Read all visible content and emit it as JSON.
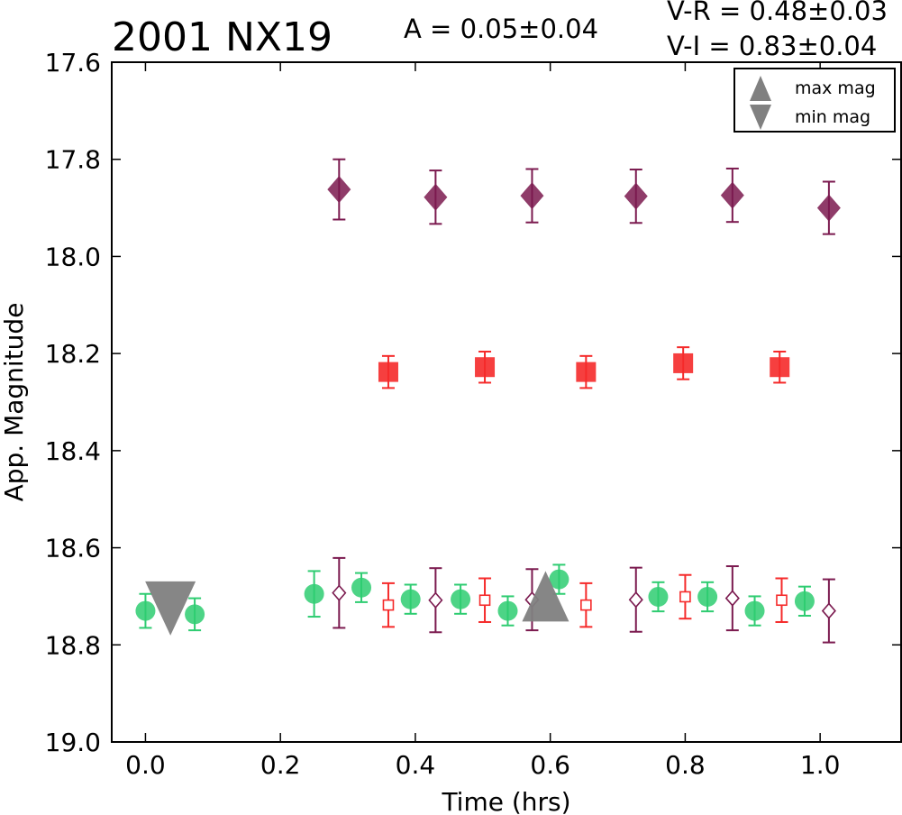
{
  "header": {
    "object_name": "2001 NX19",
    "amplitude": "A  = 0.05±0.04",
    "color_vr": "V-R = 0.48±0.03",
    "color_vi": "V-I  = 0.83±0.04"
  },
  "chart_data": {
    "type": "scatter",
    "title": "2001 NX19",
    "xlabel": "Time (hrs)",
    "ylabel": "App. Magnitude",
    "xlim": [
      -0.05,
      1.12
    ],
    "ylim": [
      19.0,
      17.6
    ],
    "y_inverted": true,
    "xticks": [
      0.0,
      0.2,
      0.4,
      0.6,
      0.8,
      1.0
    ],
    "xtick_labels": [
      "0.0",
      "0.2",
      "0.4",
      "0.6",
      "0.8",
      "1.0"
    ],
    "yticks": [
      17.6,
      17.8,
      18.0,
      18.2,
      18.4,
      18.6,
      18.8,
      19.0
    ],
    "ytick_labels": [
      "17.6",
      "17.8",
      "18.0",
      "18.2",
      "18.4",
      "18.6",
      "18.8",
      "19.0"
    ],
    "grid": false,
    "legend_position": "top-right",
    "legend": [
      {
        "label": "max mag",
        "marker": "triangle-up",
        "color": "#808080"
      },
      {
        "label": "min mag",
        "marker": "triangle-down",
        "color": "#808080"
      }
    ],
    "series": [
      {
        "marker": "diamond-filled",
        "color": "#7b1a4f",
        "points": [
          {
            "x": 0.287,
            "y": 17.862,
            "err": 0.062
          },
          {
            "x": 0.43,
            "y": 17.878,
            "err": 0.055
          },
          {
            "x": 0.573,
            "y": 17.875,
            "err": 0.055
          },
          {
            "x": 0.727,
            "y": 17.876,
            "err": 0.055
          },
          {
            "x": 0.87,
            "y": 17.874,
            "err": 0.055
          },
          {
            "x": 1.013,
            "y": 17.9,
            "err": 0.054
          }
        ]
      },
      {
        "marker": "square-filled",
        "color": "#f52a2a",
        "points": [
          {
            "x": 0.36,
            "y": 18.238,
            "err": 0.033
          },
          {
            "x": 0.503,
            "y": 18.228,
            "err": 0.032
          },
          {
            "x": 0.653,
            "y": 18.238,
            "err": 0.033
          },
          {
            "x": 0.797,
            "y": 18.22,
            "err": 0.033
          },
          {
            "x": 0.94,
            "y": 18.228,
            "err": 0.032
          }
        ]
      },
      {
        "marker": "circle-filled",
        "color": "#2ecc71",
        "points": [
          {
            "x": 0.0,
            "y": 18.73,
            "err": 0.035
          },
          {
            "x": 0.073,
            "y": 18.737,
            "err": 0.033
          },
          {
            "x": 0.25,
            "y": 18.695,
            "err": 0.047
          },
          {
            "x": 0.32,
            "y": 18.682,
            "err": 0.03
          },
          {
            "x": 0.393,
            "y": 18.706,
            "err": 0.03
          },
          {
            "x": 0.467,
            "y": 18.706,
            "err": 0.03
          },
          {
            "x": 0.537,
            "y": 18.73,
            "err": 0.03
          },
          {
            "x": 0.613,
            "y": 18.665,
            "err": 0.03
          },
          {
            "x": 0.76,
            "y": 18.701,
            "err": 0.03
          },
          {
            "x": 0.833,
            "y": 18.701,
            "err": 0.03
          },
          {
            "x": 0.903,
            "y": 18.73,
            "err": 0.03
          },
          {
            "x": 0.977,
            "y": 18.71,
            "err": 0.03
          }
        ]
      },
      {
        "marker": "square-open",
        "color": "#f52a2a",
        "points": [
          {
            "x": 0.36,
            "y": 18.718,
            "err": 0.045
          },
          {
            "x": 0.503,
            "y": 18.708,
            "err": 0.045
          },
          {
            "x": 0.653,
            "y": 18.718,
            "err": 0.045
          },
          {
            "x": 0.8,
            "y": 18.701,
            "err": 0.045
          },
          {
            "x": 0.943,
            "y": 18.708,
            "err": 0.045
          }
        ]
      },
      {
        "marker": "diamond-open",
        "color": "#7b1a4f",
        "points": [
          {
            "x": 0.287,
            "y": 18.693,
            "err": 0.072
          },
          {
            "x": 0.43,
            "y": 18.708,
            "err": 0.066
          },
          {
            "x": 0.573,
            "y": 18.707,
            "err": 0.063
          },
          {
            "x": 0.727,
            "y": 18.707,
            "err": 0.066
          },
          {
            "x": 0.87,
            "y": 18.704,
            "err": 0.066
          },
          {
            "x": 1.013,
            "y": 18.73,
            "err": 0.065
          }
        ]
      }
    ],
    "extrema": [
      {
        "label": "max mag",
        "marker": "triangle-up",
        "x": 0.593,
        "y": 18.7
      },
      {
        "label": "min mag",
        "marker": "triangle-down",
        "x": 0.037,
        "y": 18.725
      }
    ]
  }
}
